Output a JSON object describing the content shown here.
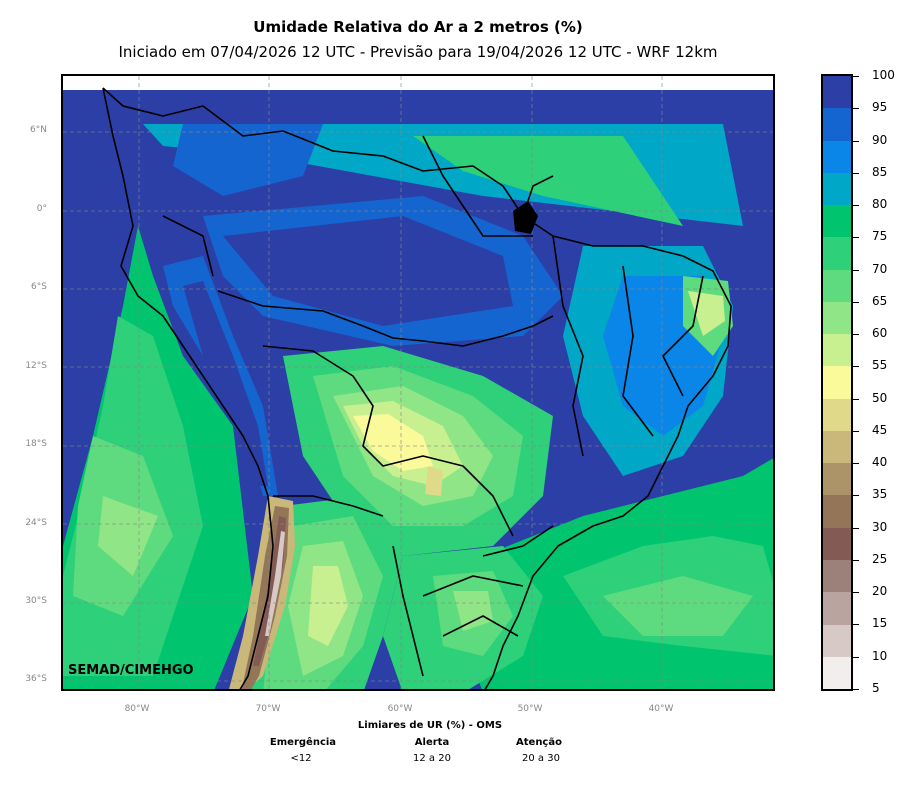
{
  "header": {
    "title": "Umidade Relativa do Ar a 2 metros (%)",
    "subtitle": "Iniciado em 07/04/2026 12 UTC - Previsão para 19/04/2026 12 UTC - WRF 12km"
  },
  "map": {
    "watermark": "SEMAD/CIMEHGO",
    "lat_labels": [
      "6°N",
      "0°",
      "6°S",
      "12°S",
      "18°S",
      "24°S",
      "30°S",
      "36°S"
    ],
    "lon_labels": [
      "80°W",
      "70°W",
      "60°W",
      "50°W",
      "40°W"
    ],
    "palette": {
      "ocean_humid": "#2b3fa6",
      "very_humid": "#1565d0",
      "humid": "#0a86e8",
      "cyan": "#00a7c7",
      "green_dark": "#00c46e",
      "green": "#2ed07a",
      "green_light": "#5edb7e",
      "green_pale": "#90e586",
      "yellow_green": "#c8f090",
      "yellow": "#fafa9a",
      "khaki": "#e0d98a",
      "tan": "#c9b87a",
      "brown_light": "#ad9468",
      "brown": "#937658",
      "brown_dark": "#845a55",
      "mauve": "#9c807a",
      "rose": "#b9a49f",
      "rose_light": "#d6c9c6",
      "white_rose": "#f2eeed"
    }
  },
  "colorbar": {
    "labels": [
      "100",
      "95",
      "90",
      "85",
      "80",
      "75",
      "70",
      "65",
      "60",
      "55",
      "50",
      "45",
      "40",
      "35",
      "30",
      "25",
      "20",
      "15",
      "10",
      "5"
    ],
    "colors": [
      "#2b3fa6",
      "#1565d0",
      "#0a86e8",
      "#00a7c7",
      "#00c46e",
      "#2ed07a",
      "#5edb7e",
      "#90e586",
      "#c8f090",
      "#fafa9a",
      "#e0d98a",
      "#c9b87a",
      "#ad9468",
      "#937658",
      "#845a55",
      "#9c807a",
      "#b9a49f",
      "#d6c9c6",
      "#f2eeed"
    ]
  },
  "thresholds": {
    "title": "Limiares de UR (%) - OMS",
    "levels": [
      {
        "name": "Emergência",
        "range": "<12"
      },
      {
        "name": "Alerta",
        "range": "12 a 20"
      },
      {
        "name": "Atenção",
        "range": "20 a 30"
      }
    ]
  }
}
